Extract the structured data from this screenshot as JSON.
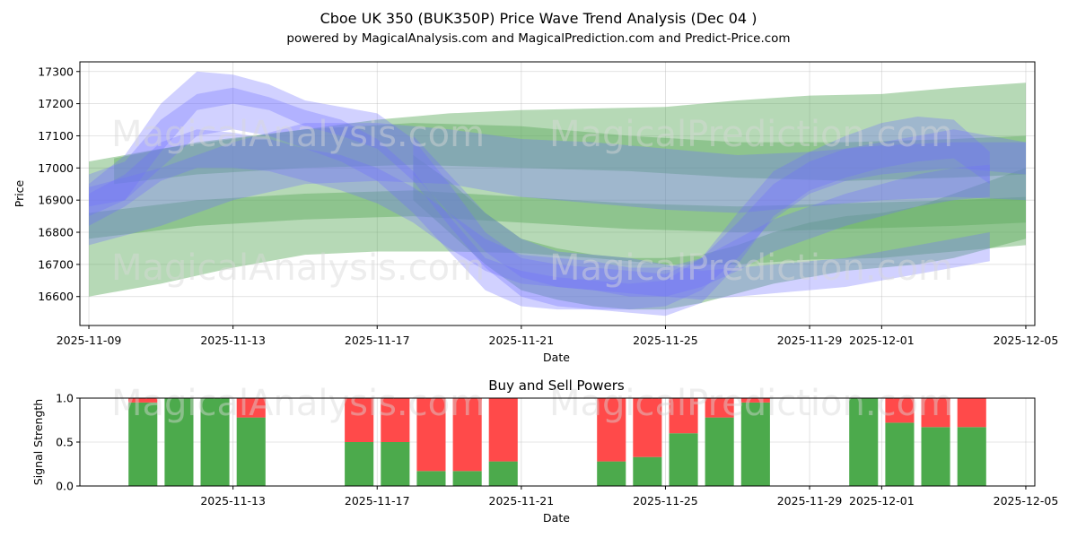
{
  "title": "Cboe UK 350 (BUK350P) Price Wave Trend Analysis (Dec 04 )",
  "subtitle": "powered by MagicalAnalysis.com and MagicalPrediction.com and Predict-Price.com",
  "watermarks": [
    "MagicalAnalysis.com",
    "MagicalPrediction.com"
  ],
  "colors": {
    "blue": "#6f6fff",
    "green": "#5daa5d",
    "buy": "#4caa4c",
    "sell": "#ff4a4a"
  },
  "chart_data": [
    {
      "type": "area",
      "title": "Price Wave Trend",
      "xlabel": "Date",
      "ylabel": "Price",
      "ylim": [
        16510,
        17330
      ],
      "xlim": [
        -0.25,
        26.25
      ],
      "x_origin": "2025-11-09",
      "x_tick_labels": [
        "2025-11-09",
        "2025-11-13",
        "2025-11-17",
        "2025-11-21",
        "2025-11-25",
        "2025-11-29",
        "2025-12-01",
        "2025-12-05"
      ],
      "x_tick_days": [
        0,
        4,
        8,
        12,
        16,
        20,
        22,
        26
      ],
      "y_ticks": [
        16600,
        16700,
        16800,
        16900,
        17000,
        17100,
        17200,
        17300
      ],
      "green_bands": [
        {
          "x": [
            0,
            2,
            4,
            6,
            8,
            10,
            12,
            14,
            16,
            18,
            20,
            22,
            24,
            26
          ],
          "upper": [
            17020,
            17060,
            17090,
            17120,
            17150,
            17170,
            17180,
            17185,
            17190,
            17210,
            17225,
            17230,
            17250,
            17265
          ],
          "lower": [
            16600,
            16640,
            16690,
            16730,
            16740,
            16740,
            16735,
            16720,
            16700,
            16700,
            16715,
            16720,
            16740,
            16760
          ]
        },
        {
          "x": [
            0.7,
            3,
            6,
            9,
            12,
            15,
            18,
            21,
            24,
            26
          ],
          "upper": [
            17030,
            17080,
            17120,
            17140,
            17130,
            17100,
            17080,
            17080,
            17090,
            17100
          ],
          "lower": [
            16950,
            16980,
            17000,
            17010,
            17000,
            16990,
            16970,
            16960,
            16970,
            16980
          ]
        },
        {
          "x": [
            0,
            3,
            6,
            9,
            12,
            15,
            18,
            21,
            24,
            26
          ],
          "upper": [
            16860,
            16900,
            16920,
            16930,
            16910,
            16890,
            16880,
            16890,
            16900,
            16910
          ],
          "lower": [
            16780,
            16820,
            16840,
            16850,
            16830,
            16810,
            16800,
            16810,
            16820,
            16830
          ]
        },
        {
          "x": [
            9,
            10,
            11,
            12,
            13,
            14,
            15,
            16,
            17,
            18,
            19,
            20,
            21,
            22,
            23,
            24,
            25,
            26
          ],
          "upper": [
            17040,
            16960,
            16860,
            16780,
            16750,
            16730,
            16720,
            16720,
            16730,
            16760,
            16800,
            16830,
            16850,
            16860,
            16880,
            16920,
            16960,
            17000
          ],
          "lower": [
            16900,
            16800,
            16700,
            16620,
            16590,
            16570,
            16560,
            16560,
            16580,
            16610,
            16640,
            16660,
            16680,
            16690,
            16700,
            16720,
            16750,
            16780
          ]
        }
      ],
      "blue_bands": [
        {
          "x": [
            0,
            1,
            2,
            3,
            4,
            5,
            6,
            7,
            8,
            9,
            10,
            11,
            12,
            13,
            14,
            15,
            16,
            17,
            18,
            19,
            20,
            21,
            22,
            23,
            24,
            25,
            26
          ],
          "upper": [
            16980,
            17020,
            17150,
            17230,
            17250,
            17220,
            17180,
            17150,
            17090,
            16990,
            16850,
            16720,
            16680,
            16660,
            16650,
            16640,
            16650,
            16720,
            16830,
            16950,
            17020,
            17060,
            17080,
            17100,
            17120,
            17100,
            17080
          ],
          "lower": [
            16850,
            16900,
            17000,
            17100,
            17120,
            17100,
            17060,
            17020,
            16960,
            16860,
            16740,
            16620,
            16570,
            16560,
            16560,
            16560,
            16570,
            16620,
            16720,
            16840,
            16920,
            16960,
            16980,
            16990,
            17000,
            16990,
            16980
          ]
        },
        {
          "x": [
            0,
            1,
            2,
            3,
            4,
            5,
            6,
            7,
            8,
            9,
            10,
            11,
            12,
            13,
            14,
            15,
            16,
            17,
            18,
            19,
            20,
            21,
            22,
            23,
            24,
            25
          ],
          "upper": [
            16950,
            17040,
            17200,
            17300,
            17290,
            17260,
            17210,
            17190,
            17170,
            17090,
            16950,
            16800,
            16720,
            16700,
            16690,
            16680,
            16670,
            16720,
            16860,
            16990,
            17050,
            17100,
            17140,
            17160,
            17150,
            17050
          ],
          "lower": [
            16880,
            16900,
            17050,
            17180,
            17200,
            17180,
            17130,
            17100,
            17060,
            16960,
            16820,
            16690,
            16600,
            16570,
            16560,
            16550,
            16540,
            16580,
            16700,
            16850,
            16930,
            16970,
            17000,
            17020,
            17030,
            16950
          ]
        },
        {
          "x": [
            0,
            1,
            2,
            3,
            4,
            5,
            6,
            7,
            8,
            9,
            10,
            11,
            12,
            13,
            14,
            15,
            16,
            17,
            18,
            19,
            20,
            21,
            22,
            23,
            24,
            25
          ],
          "upper": [
            16920,
            16980,
            17080,
            17120,
            17110,
            17090,
            17060,
            17040,
            17000,
            16940,
            16860,
            16780,
            16730,
            16720,
            16710,
            16690,
            16690,
            16720,
            16780,
            16840,
            16880,
            16920,
            16950,
            16980,
            17000,
            17010
          ],
          "lower": [
            16820,
            16880,
            16960,
            17000,
            17000,
            16990,
            16960,
            16930,
            16890,
            16830,
            16750,
            16680,
            16640,
            16630,
            16620,
            16600,
            16600,
            16630,
            16680,
            16740,
            16780,
            16820,
            16850,
            16880,
            16900,
            16910
          ]
        },
        {
          "x": [
            0,
            2,
            4,
            6,
            8,
            10,
            12,
            14,
            16,
            18,
            20,
            22,
            24,
            26
          ],
          "upper": [
            16940,
            17000,
            17080,
            17140,
            17140,
            17120,
            17090,
            17080,
            17060,
            17040,
            17050,
            17070,
            17080,
            17080
          ],
          "lower": [
            16760,
            16820,
            16900,
            16950,
            16960,
            16950,
            16910,
            16890,
            16870,
            16860,
            16880,
            16900,
            16910,
            16900
          ]
        },
        {
          "x": [
            9,
            10,
            11,
            12,
            13,
            14,
            15,
            16,
            17,
            18,
            19,
            20,
            21,
            22,
            23,
            24,
            25
          ],
          "upper": [
            17100,
            16980,
            16860,
            16780,
            16740,
            16730,
            16720,
            16700,
            16680,
            16690,
            16700,
            16710,
            16720,
            16740,
            16760,
            16780,
            16800
          ],
          "lower": [
            16980,
            16860,
            16740,
            16660,
            16630,
            16620,
            16610,
            16600,
            16590,
            16600,
            16610,
            16620,
            16630,
            16650,
            16670,
            16690,
            16710
          ]
        }
      ]
    },
    {
      "type": "bar",
      "title": "Buy and Sell Powers",
      "xlabel": "Date",
      "ylabel": "Signal Strength",
      "ylim": [
        0,
        1
      ],
      "xlim": [
        -0.25,
        26.25
      ],
      "y_ticks": [
        0.0,
        0.5,
        1.0
      ],
      "y_tick_labels": [
        "0.0",
        "0.5",
        "1.0"
      ],
      "x_tick_labels": [
        "2025-11-13",
        "2025-11-17",
        "2025-11-21",
        "2025-11-25",
        "2025-11-29",
        "2025-12-01",
        "2025-12-05"
      ],
      "x_tick_days": [
        4,
        8,
        12,
        16,
        20,
        22,
        26
      ],
      "bar_days": [
        1.5,
        2.5,
        3.5,
        4.5,
        7.5,
        8.5,
        9.5,
        10.5,
        11.5,
        14.5,
        15.5,
        16.5,
        17.5,
        18.5,
        21.5,
        22.5,
        23.5,
        24.5
      ],
      "series": [
        {
          "name": "Buy",
          "values": [
            0.95,
            1.0,
            1.0,
            0.78,
            0.5,
            0.5,
            0.17,
            0.17,
            0.28,
            0.28,
            0.33,
            0.6,
            0.78,
            0.95,
            1.0,
            0.72,
            0.67,
            0.67
          ]
        },
        {
          "name": "Sell",
          "values": [
            0.05,
            0.0,
            0.0,
            0.22,
            0.5,
            0.5,
            0.83,
            0.83,
            0.72,
            0.72,
            0.67,
            0.4,
            0.22,
            0.05,
            0.0,
            0.28,
            0.33,
            0.33
          ]
        }
      ]
    }
  ]
}
